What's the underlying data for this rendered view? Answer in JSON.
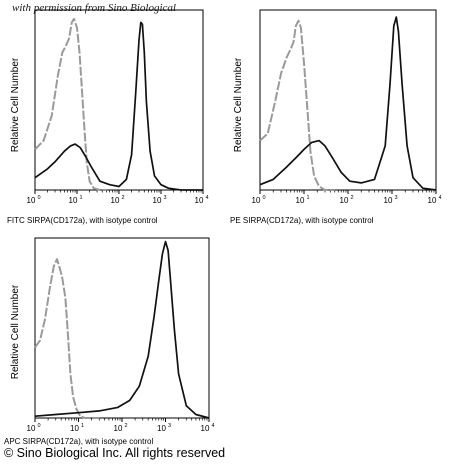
{
  "watermark": "with permission from Sino Biological",
  "footer": {
    "copyright": "© Sino Biological Inc. All rights reserved"
  },
  "colors": {
    "isotype": "#9a9a9a",
    "sample": "#111111"
  },
  "chart_data": [
    {
      "type": "line",
      "panel": "FITC",
      "ylabel": "Relative Cell Number",
      "xlabel": "FITC SIRPA(CD172a), with isotype control",
      "xscale": "log",
      "xlim": [
        1,
        10000
      ],
      "x_ticks": [
        "10",
        "10",
        "10",
        "10",
        "10"
      ],
      "x_tick_exponents": [
        "0",
        "1",
        "2",
        "3",
        "4"
      ],
      "ylim": [
        0,
        1
      ],
      "series": [
        {
          "role": "isotype",
          "color": "#9a9a9a",
          "dash": "dashed",
          "x": [
            1,
            1.6,
            2.5,
            3.5,
            4.5,
            5.5,
            6.5,
            7.5,
            8.5,
            10,
            11.5,
            13,
            15,
            17,
            20,
            25,
            35,
            50
          ],
          "y": [
            0.23,
            0.28,
            0.42,
            0.65,
            0.78,
            0.82,
            0.86,
            0.95,
            0.97,
            0.92,
            0.78,
            0.58,
            0.35,
            0.16,
            0.05,
            0.01,
            0.0,
            0.0
          ]
        },
        {
          "role": "sample",
          "color": "#111111",
          "dash": "solid",
          "x": [
            1,
            2,
            3,
            5,
            7,
            9,
            12,
            16,
            22,
            35,
            60,
            100,
            150,
            200,
            250,
            300,
            330,
            360,
            400,
            450,
            550,
            700,
            1000,
            1500,
            3000,
            10000
          ],
          "y": [
            0.07,
            0.12,
            0.16,
            0.22,
            0.25,
            0.26,
            0.24,
            0.19,
            0.13,
            0.05,
            0.03,
            0.02,
            0.06,
            0.2,
            0.55,
            0.85,
            0.95,
            0.94,
            0.78,
            0.5,
            0.22,
            0.08,
            0.03,
            0.01,
            0.0,
            0.0
          ]
        }
      ]
    },
    {
      "type": "line",
      "panel": "PE",
      "ylabel": "Relative Cell Number",
      "xlabel": "PE SIRPA(CD172a), with isotype control",
      "xscale": "log",
      "xlim": [
        1,
        10000
      ],
      "x_ticks": [
        "10",
        "10",
        "10",
        "10",
        "10"
      ],
      "x_tick_exponents": [
        "0",
        "1",
        "2",
        "3",
        "4"
      ],
      "ylim": [
        0,
        1
      ],
      "series": [
        {
          "role": "isotype",
          "color": "#9a9a9a",
          "dash": "dashed",
          "x": [
            1,
            1.5,
            2.2,
            3,
            4,
            5,
            5.8,
            6.5,
            7.5,
            8.5,
            10,
            12,
            14,
            17,
            22,
            30,
            50
          ],
          "y": [
            0.28,
            0.32,
            0.5,
            0.66,
            0.75,
            0.8,
            0.84,
            0.93,
            0.96,
            0.92,
            0.72,
            0.45,
            0.22,
            0.08,
            0.02,
            0.0,
            0.0
          ]
        },
        {
          "role": "sample",
          "color": "#111111",
          "dash": "solid",
          "x": [
            1,
            2,
            4,
            7,
            10,
            15,
            22,
            30,
            45,
            70,
            110,
            200,
            400,
            700,
            900,
            1100,
            1250,
            1400,
            1700,
            2200,
            3000,
            5000,
            10000
          ],
          "y": [
            0.03,
            0.06,
            0.13,
            0.19,
            0.23,
            0.27,
            0.28,
            0.25,
            0.18,
            0.1,
            0.05,
            0.04,
            0.06,
            0.25,
            0.6,
            0.93,
            0.98,
            0.9,
            0.6,
            0.25,
            0.07,
            0.01,
            0.0
          ]
        }
      ]
    },
    {
      "type": "line",
      "panel": "APC",
      "ylabel": "Relative Cell Number",
      "xlabel": "APC SIRPA(CD172a), with isotype control",
      "xscale": "log",
      "xlim": [
        1,
        10000
      ],
      "x_ticks": [
        "10",
        "10",
        "10",
        "10",
        "10"
      ],
      "x_tick_exponents": [
        "0",
        "1",
        "2",
        "3",
        "4"
      ],
      "ylim": [
        0,
        1
      ],
      "series": [
        {
          "role": "isotype",
          "color": "#9a9a9a",
          "dash": "dashed",
          "x": [
            1,
            1.3,
            1.7,
            2.2,
            2.7,
            3.2,
            3.7,
            4.2,
            5,
            5.8,
            6.5,
            7.5,
            9,
            11,
            14,
            20,
            30
          ],
          "y": [
            0.4,
            0.44,
            0.56,
            0.74,
            0.86,
            0.9,
            0.85,
            0.8,
            0.68,
            0.45,
            0.25,
            0.12,
            0.05,
            0.01,
            0.0,
            0.0,
            0.0
          ]
        },
        {
          "role": "sample",
          "color": "#111111",
          "dash": "solid",
          "x": [
            1,
            3,
            10,
            30,
            80,
            150,
            250,
            400,
            550,
            700,
            850,
            1000,
            1150,
            1300,
            1600,
            2000,
            3000,
            5000,
            10000
          ],
          "y": [
            0.01,
            0.02,
            0.03,
            0.04,
            0.06,
            0.1,
            0.18,
            0.35,
            0.58,
            0.78,
            0.93,
            1.0,
            0.95,
            0.78,
            0.5,
            0.25,
            0.07,
            0.02,
            0.0
          ]
        }
      ]
    }
  ]
}
